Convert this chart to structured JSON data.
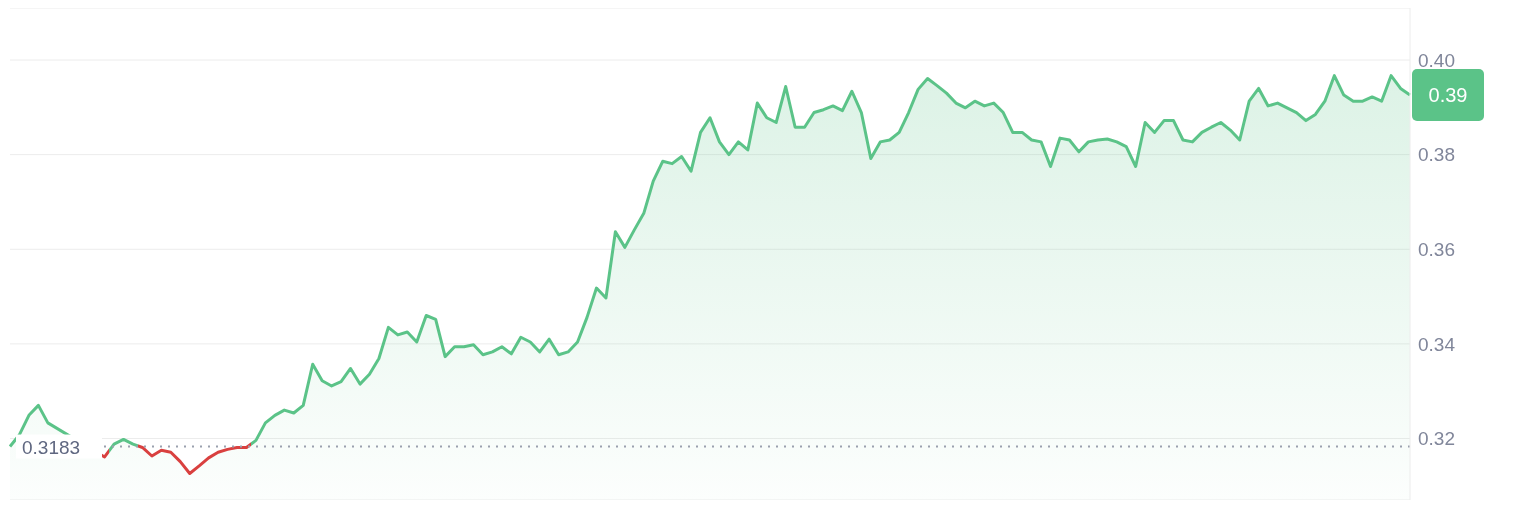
{
  "chart_data": {
    "type": "area",
    "categories": [
      null,
      null,
      null,
      null,
      null,
      null,
      null,
      null,
      null,
      null,
      null,
      null,
      null,
      null,
      null,
      null,
      null,
      null,
      null,
      null,
      null,
      null,
      null,
      null,
      null,
      null,
      null,
      null,
      null,
      null,
      null,
      null,
      null,
      null,
      null,
      null,
      null,
      null,
      null,
      null,
      null,
      null,
      null,
      null,
      null,
      null,
      null,
      null,
      null,
      null,
      null,
      null,
      null,
      null,
      null,
      null,
      null,
      null,
      null,
      null,
      null,
      null,
      null,
      null,
      null,
      null,
      null,
      null,
      null,
      null,
      null,
      null,
      null,
      null,
      null,
      null,
      null,
      null,
      null,
      null,
      null,
      null,
      null,
      null,
      null,
      null,
      null,
      null,
      null,
      null,
      null,
      null,
      null,
      null,
      null,
      null,
      null,
      null,
      null,
      null,
      null,
      null,
      null,
      null,
      null,
      null,
      null,
      null,
      null,
      null,
      null,
      null,
      null,
      null,
      null,
      null,
      null,
      null,
      null,
      null,
      null,
      null,
      null,
      null,
      null,
      null,
      null,
      null,
      null,
      null,
      null,
      null,
      null,
      null,
      null,
      null,
      null,
      null,
      null,
      null,
      null,
      null,
      null,
      null,
      null,
      null,
      null,
      null,
      null
    ],
    "series": [
      {
        "color": "#5bc388",
        "values": [
          0.3183,
          0.3208,
          0.3249,
          0.327,
          0.3233,
          null,
          null,
          null,
          null,
          null,
          0.3161,
          0.3188,
          0.3198,
          0.3188,
          0.3181,
          0.3163,
          0.3175,
          0.3171,
          0.3151,
          0.3126,
          0.3142,
          0.3159,
          0.3171,
          0.3177,
          0.3181,
          0.3181,
          0.3196,
          0.3233,
          0.3249,
          0.326,
          0.3254,
          0.327,
          0.3357,
          0.3322,
          0.3311,
          0.332,
          0.3348,
          0.3315,
          0.3336,
          0.3369,
          0.3435,
          0.3419,
          0.3425,
          0.3404,
          0.346,
          0.3452,
          0.3373,
          0.3394,
          0.3394,
          0.3398,
          0.3377,
          0.3383,
          0.3394,
          0.3379,
          0.3414,
          0.3404,
          0.3383,
          0.341,
          0.3377,
          0.3383,
          0.3404,
          0.3456,
          0.3518,
          0.3497,
          0.3637,
          0.3604,
          0.3641,
          0.3676,
          0.3744,
          0.3786,
          0.3781,
          0.3796,
          0.3765,
          0.3847,
          0.3878,
          0.3827,
          0.38,
          0.3827,
          0.381,
          0.3909,
          0.3878,
          0.3868,
          0.3944,
          0.3858,
          0.3858,
          0.3889,
          0.3895,
          0.3903,
          0.3893,
          0.3934,
          0.3889,
          0.3792,
          0.3827,
          0.3831,
          0.3847,
          0.3889,
          0.3938,
          0.3961,
          0.3946,
          0.393,
          0.3909,
          0.3899,
          0.3913,
          0.3903,
          0.3909,
          0.3889,
          0.3847,
          0.3847,
          0.3831,
          0.3827,
          0.3775,
          0.3835,
          0.3831,
          0.3806,
          0.3827,
          0.3831,
          0.3833,
          0.3827,
          0.3817,
          0.3775,
          0.3868,
          0.3847,
          0.3872,
          0.3872,
          0.3831,
          0.3827,
          0.3847,
          0.3858,
          0.3868,
          0.3852,
          0.3831,
          0.3913,
          0.394,
          0.3903,
          0.3909,
          0.3899,
          0.3889,
          0.3872,
          0.3885,
          0.3913,
          0.3967,
          0.3926,
          0.3913,
          0.3913,
          0.3922,
          0.3913,
          0.3967,
          0.394,
          0.3926
        ],
        "colors": [
          "#5bc388",
          "#5bc388",
          "#5bc388",
          "#5bc388",
          "#5bc388",
          "#5bc388",
          "#5bc388",
          "#5bc388",
          "#5bc388",
          "#d9403f",
          "#d9403f",
          "#5bc388",
          "#5bc388",
          "#5bc388",
          "#d9403f",
          "#d9403f",
          "#d9403f",
          "#d9403f",
          "#d9403f",
          "#d9403f",
          "#d9403f",
          "#d9403f",
          "#d9403f",
          "#d9403f",
          "#d9403f",
          "#d9403f",
          "#5bc388",
          "#5bc388",
          "#5bc388",
          "#5bc388",
          "#5bc388",
          "#5bc388",
          "#5bc388",
          "#5bc388",
          "#5bc388",
          "#5bc388",
          "#5bc388",
          "#5bc388",
          "#5bc388",
          "#5bc388",
          "#5bc388",
          "#5bc388",
          "#5bc388",
          "#5bc388",
          "#5bc388",
          "#5bc388",
          "#5bc388",
          "#5bc388",
          "#5bc388",
          "#5bc388",
          "#5bc388",
          "#5bc388",
          "#5bc388",
          "#5bc388",
          "#5bc388",
          "#5bc388",
          "#5bc388",
          "#5bc388",
          "#5bc388",
          "#5bc388",
          "#5bc388",
          "#5bc388",
          "#5bc388",
          "#5bc388",
          "#5bc388",
          "#5bc388",
          "#5bc388",
          "#5bc388",
          "#5bc388",
          "#5bc388",
          "#5bc388",
          "#5bc388",
          "#5bc388",
          "#5bc388",
          "#5bc388",
          "#5bc388",
          "#5bc388",
          "#5bc388",
          "#5bc388",
          "#5bc388",
          "#5bc388",
          "#5bc388",
          "#5bc388",
          "#5bc388",
          "#5bc388",
          "#5bc388",
          "#5bc388",
          "#5bc388",
          "#5bc388",
          "#5bc388",
          "#5bc388",
          "#5bc388",
          "#5bc388",
          "#5bc388",
          "#5bc388",
          "#5bc388",
          "#5bc388",
          "#5bc388",
          "#5bc388",
          "#5bc388",
          "#5bc388",
          "#5bc388",
          "#5bc388",
          "#5bc388",
          "#5bc388",
          "#5bc388",
          "#5bc388",
          "#5bc388",
          "#5bc388",
          "#5bc388",
          "#5bc388",
          "#5bc388",
          "#5bc388",
          "#5bc388",
          "#5bc388",
          "#5bc388",
          "#5bc388",
          "#5bc388",
          "#5bc388",
          "#5bc388",
          "#5bc388",
          "#5bc388",
          "#5bc388",
          "#5bc388",
          "#5bc388",
          "#5bc388",
          "#5bc388",
          "#5bc388",
          "#5bc388",
          "#5bc388",
          "#5bc388",
          "#5bc388",
          "#5bc388",
          "#5bc388",
          "#5bc388",
          "#5bc388",
          "#5bc388",
          "#5bc388",
          "#5bc388",
          "#5bc388",
          "#5bc388",
          "#5bc388",
          "#5bc388",
          "#5bc388",
          "#5bc388",
          "#5bc388",
          "#5bc388",
          "#5bc388",
          "#5bc388"
        ]
      }
    ],
    "ylim": [
      0.307,
      0.411
    ],
    "yticks": [
      0.32,
      0.34,
      0.36,
      0.38,
      {
        "value": 0.4,
        "label": "0.40"
      }
    ],
    "grid": "y",
    "tick_labels": "y",
    "ref_lines": [
      {
        "axis": "y",
        "value": 0.3183,
        "label": "0.3183",
        "color": "#9aa0ae",
        "line_style": "dotted"
      }
    ],
    "annotations": [
      "0.39"
    ]
  }
}
